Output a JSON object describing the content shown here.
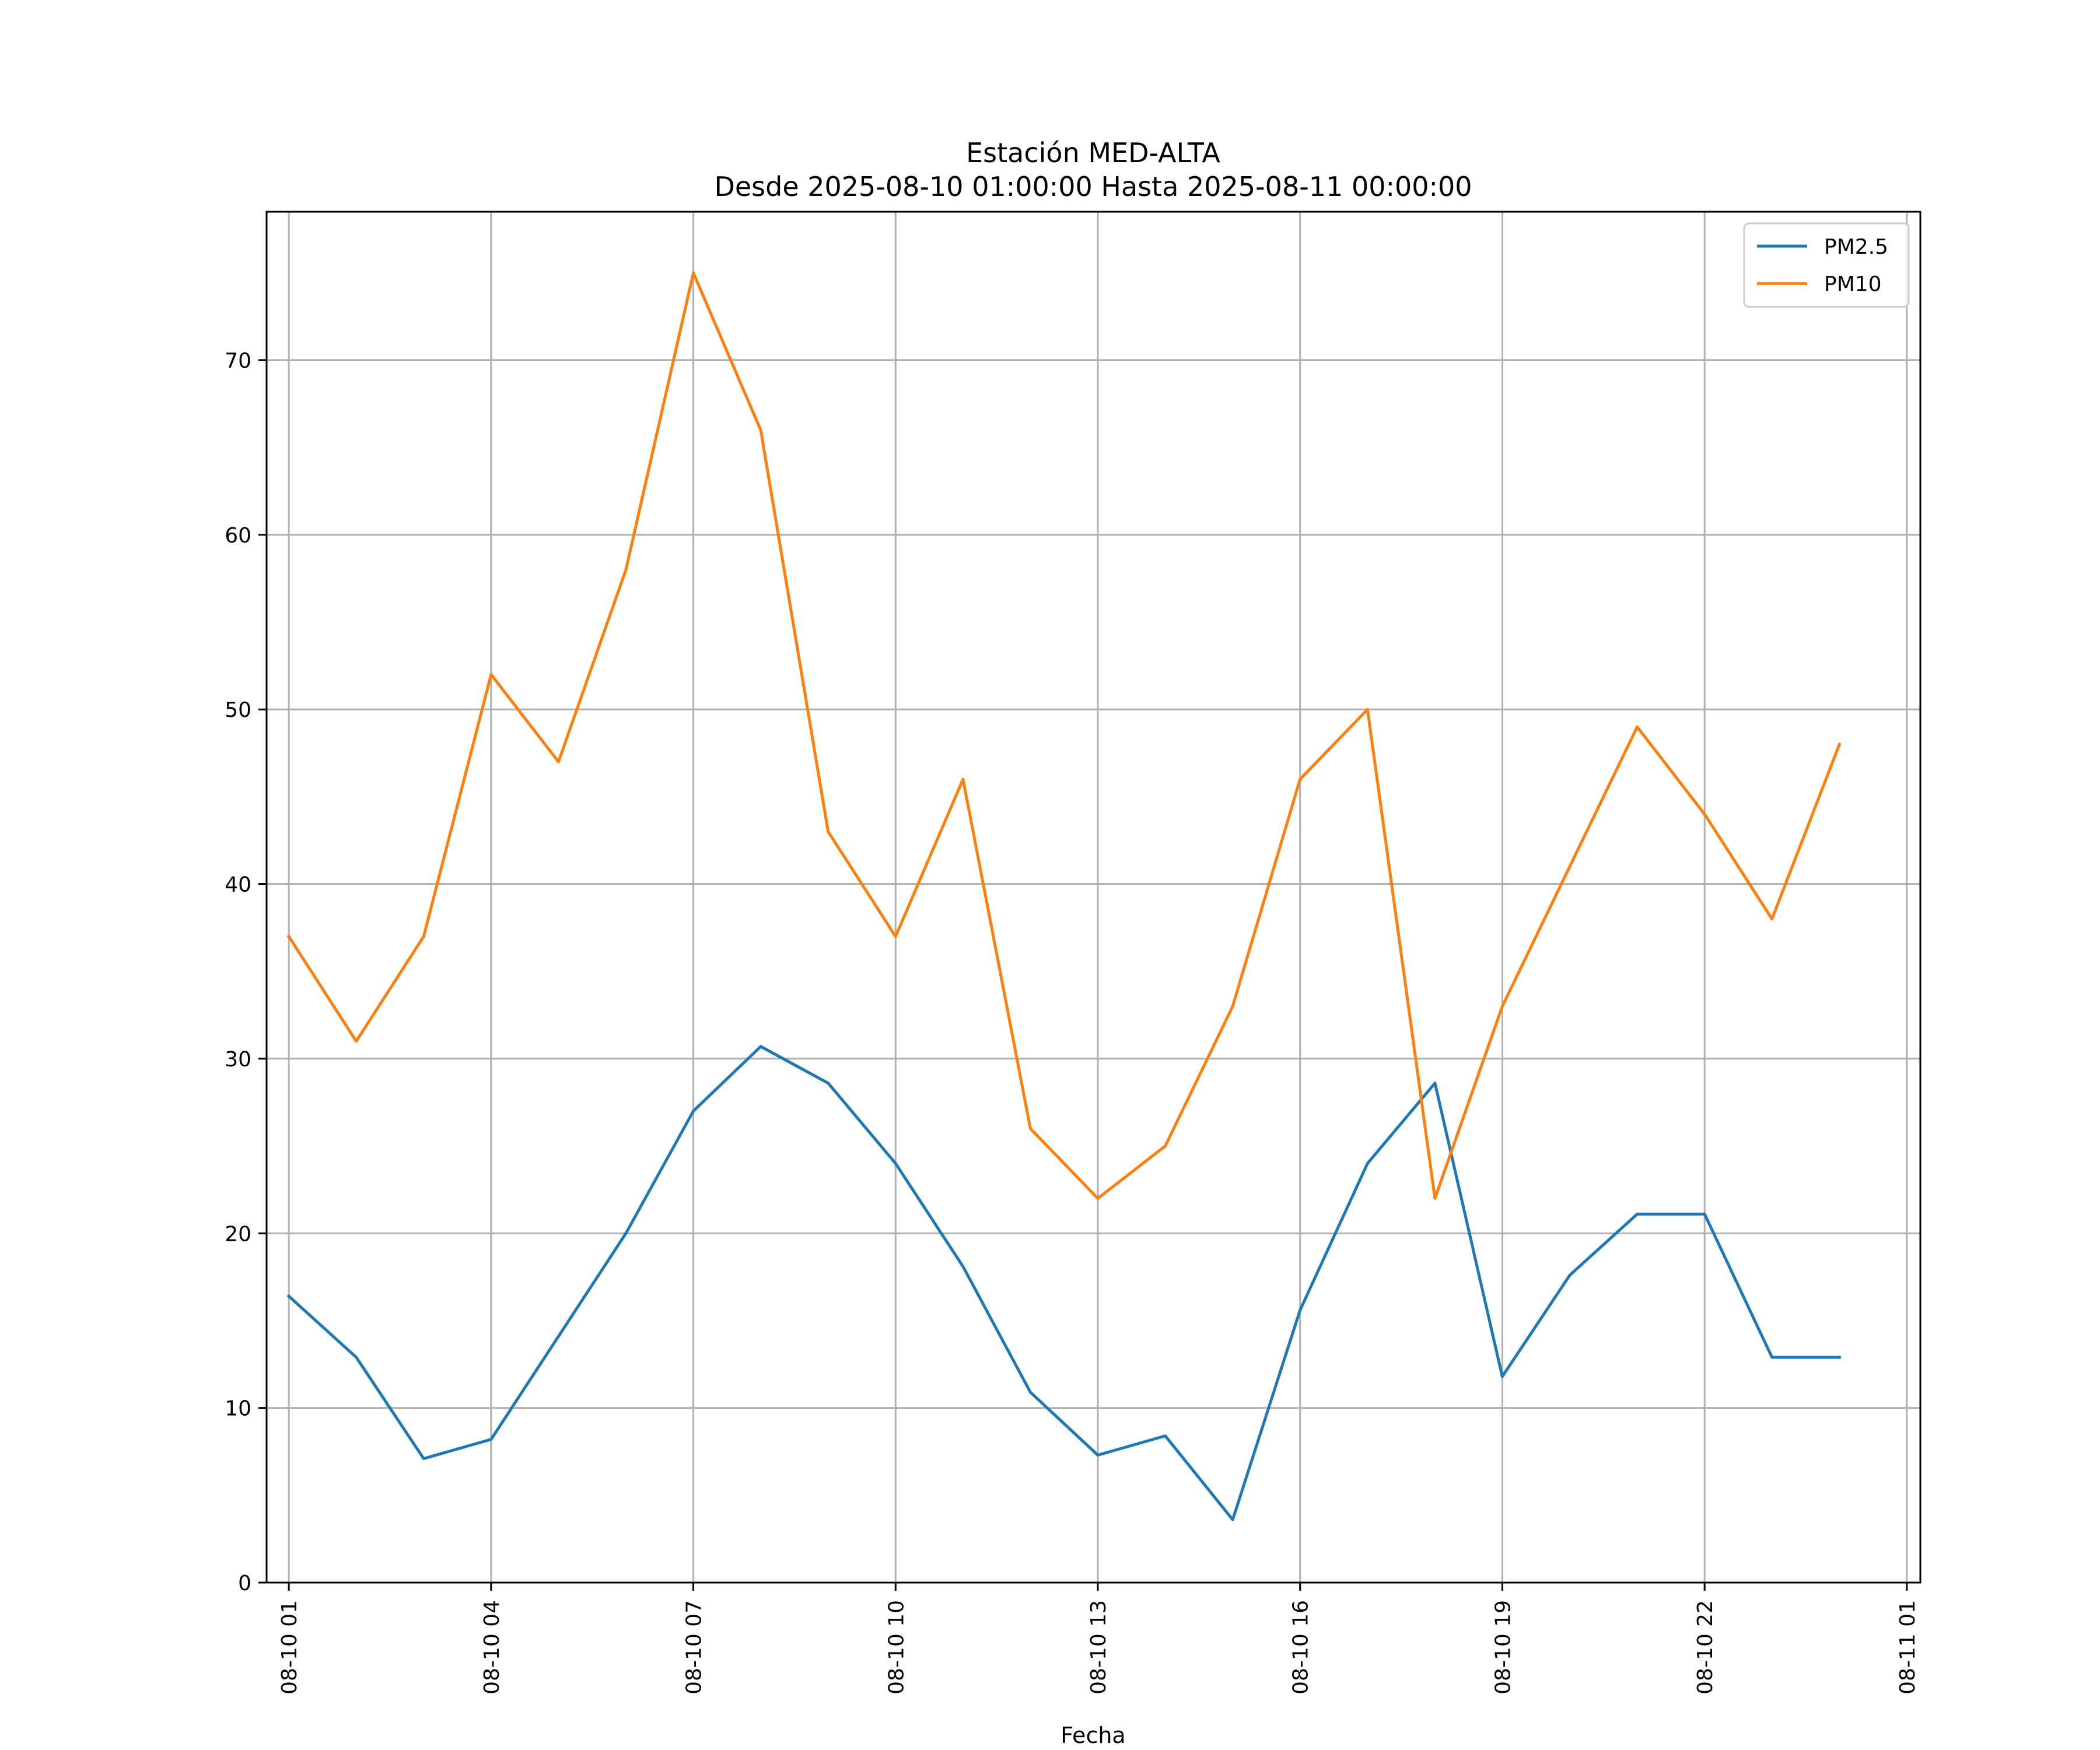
{
  "chart_data": {
    "type": "line",
    "title": "Estación MED-ALTA",
    "subtitle": "Desde 2025-08-10 01:00:00 Hasta 2025-08-11 00:00:00",
    "xlabel": "Fecha",
    "ylabel": "",
    "x": [
      "08-10 01",
      "08-10 02",
      "08-10 03",
      "08-10 04",
      "08-10 05",
      "08-10 06",
      "08-10 07",
      "08-10 08",
      "08-10 09",
      "08-10 10",
      "08-10 11",
      "08-10 12",
      "08-10 13",
      "08-10 14",
      "08-10 15",
      "08-10 16",
      "08-10 17",
      "08-10 18",
      "08-10 19",
      "08-10 20",
      "08-10 21",
      "08-10 22",
      "08-10 23",
      "08-11 00"
    ],
    "xlim_hours": [
      -0.33,
      24.2
    ],
    "x_ticks": [
      {
        "hour": 0,
        "label": "08-10 01"
      },
      {
        "hour": 3,
        "label": "08-10 04"
      },
      {
        "hour": 6,
        "label": "08-10 07"
      },
      {
        "hour": 9,
        "label": "08-10 10"
      },
      {
        "hour": 12,
        "label": "08-10 13"
      },
      {
        "hour": 15,
        "label": "08-10 16"
      },
      {
        "hour": 18,
        "label": "08-10 19"
      },
      {
        "hour": 21,
        "label": "08-10 22"
      },
      {
        "hour": 24,
        "label": "08-11 01"
      }
    ],
    "ylim": [
      0,
      78.5
    ],
    "y_ticks": [
      0,
      10,
      20,
      30,
      40,
      50,
      60,
      70
    ],
    "grid": true,
    "legend_position": "top-right",
    "series": [
      {
        "name": "PM2.5",
        "color": "#1f77b4",
        "values": [
          16.4,
          12.9,
          7.1,
          8.2,
          14.1,
          20.0,
          27.0,
          30.7,
          28.6,
          24.0,
          18.1,
          10.9,
          7.3,
          8.4,
          3.6,
          15.6,
          24.0,
          28.6,
          11.8,
          17.6,
          21.1,
          21.1,
          12.9,
          12.9
        ]
      },
      {
        "name": "PM10",
        "color": "#ff7f0e",
        "values": [
          37,
          31,
          37,
          52,
          47,
          58,
          75,
          66,
          43,
          37,
          46,
          26,
          22,
          25,
          33,
          46,
          50,
          22,
          33,
          41,
          49,
          44,
          38,
          48
        ]
      }
    ]
  }
}
